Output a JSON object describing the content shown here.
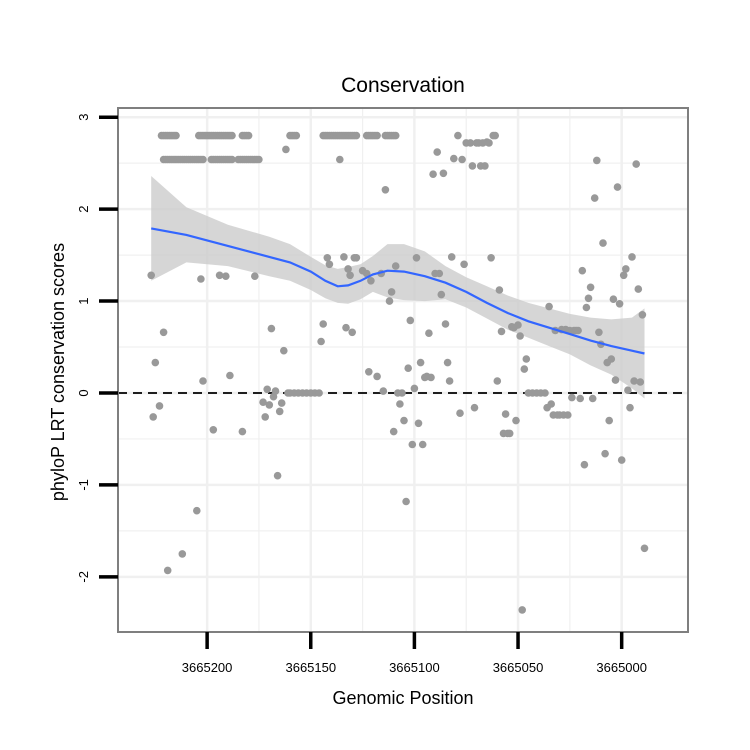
{
  "chart_data": {
    "type": "scatter",
    "title": "Conservation",
    "xlabel": "Genomic Position",
    "ylabel": "phyloP LRT conservation scores",
    "x_reversed": true,
    "xlim": [
      3664968,
      3665243
    ],
    "ylim": [
      -2.6,
      3.1
    ],
    "x_ticks": [
      3665200,
      3665150,
      3665100,
      3665050,
      3665000
    ],
    "x_tick_labels": [
      "3665200",
      "3665150",
      "3665100",
      "3665050",
      "3665000"
    ],
    "y_ticks": [
      -2,
      -1,
      0,
      1,
      2,
      3
    ],
    "y_tick_labels": [
      "-2",
      "-1",
      "0",
      "1",
      "2",
      "3"
    ],
    "reference_line": {
      "y": 0,
      "style": "dashed"
    },
    "grid": true,
    "colors": {
      "points": "#999999",
      "smooth_line": "#3366ff",
      "ribbon": "#cccccc",
      "grid": "#f0f0f0",
      "frame": "#7f7f7f"
    },
    "points": [
      {
        "x": 3665227,
        "y": 1.28
      },
      {
        "x": 3665226,
        "y": -0.26
      },
      {
        "x": 3665225,
        "y": 0.33
      },
      {
        "x": 3665223,
        "y": -0.14
      },
      {
        "x": 3665221,
        "y": 0.66
      },
      {
        "x": 3665219,
        "y": -1.93
      },
      {
        "x": 3665212,
        "y": -1.75
      },
      {
        "x": 3665205,
        "y": -1.28
      },
      {
        "x": 3665203,
        "y": 1.24
      },
      {
        "x": 3665202,
        "y": 0.13
      },
      {
        "x": 3665197,
        "y": -0.4
      },
      {
        "x": 3665194,
        "y": 1.28
      },
      {
        "x": 3665191,
        "y": 1.27
      },
      {
        "x": 3665189,
        "y": 0.19
      },
      {
        "x": 3665183,
        "y": -0.42
      },
      {
        "x": 3665177,
        "y": 1.27
      },
      {
        "x": 3665173,
        "y": -0.1
      },
      {
        "x": 3665172,
        "y": -0.26
      },
      {
        "x": 3665171,
        "y": 0.04
      },
      {
        "x": 3665170,
        "y": -0.13
      },
      {
        "x": 3665169,
        "y": 0.7
      },
      {
        "x": 3665168,
        "y": -0.04
      },
      {
        "x": 3665167,
        "y": 0.02
      },
      {
        "x": 3665166,
        "y": -0.9
      },
      {
        "x": 3665165,
        "y": -0.2
      },
      {
        "x": 3665164,
        "y": -0.11
      },
      {
        "x": 3665163,
        "y": 0.46
      },
      {
        "x": 3665162,
        "y": 2.65
      },
      {
        "x": 3665161,
        "y": 0.0
      },
      {
        "x": 3665160,
        "y": 0.0
      },
      {
        "x": 3665158,
        "y": 0.0
      },
      {
        "x": 3665156,
        "y": 0.0
      },
      {
        "x": 3665154,
        "y": 0.0
      },
      {
        "x": 3665152,
        "y": 0.0
      },
      {
        "x": 3665150,
        "y": 0.0
      },
      {
        "x": 3665148,
        "y": 0.0
      },
      {
        "x": 3665146,
        "y": 0.0
      },
      {
        "x": 3665145,
        "y": 0.56
      },
      {
        "x": 3665144,
        "y": 0.75
      },
      {
        "x": 3665142,
        "y": 1.47
      },
      {
        "x": 3665141,
        "y": 1.4
      },
      {
        "x": 3665136,
        "y": 2.54
      },
      {
        "x": 3665134,
        "y": 1.48
      },
      {
        "x": 3665133,
        "y": 0.71
      },
      {
        "x": 3665132,
        "y": 1.35
      },
      {
        "x": 3665131,
        "y": 1.28
      },
      {
        "x": 3665130,
        "y": 0.66
      },
      {
        "x": 3665129,
        "y": 1.47
      },
      {
        "x": 3665128,
        "y": 1.47
      },
      {
        "x": 3665125,
        "y": 1.33
      },
      {
        "x": 3665123,
        "y": 1.3
      },
      {
        "x": 3665122,
        "y": 0.23
      },
      {
        "x": 3665121,
        "y": 1.22
      },
      {
        "x": 3665118,
        "y": 0.18
      },
      {
        "x": 3665116,
        "y": 1.3
      },
      {
        "x": 3665115,
        "y": 0.02
      },
      {
        "x": 3665114,
        "y": 2.21
      },
      {
        "x": 3665112,
        "y": 1.0
      },
      {
        "x": 3665111,
        "y": 1.1
      },
      {
        "x": 3665110,
        "y": -0.42
      },
      {
        "x": 3665109,
        "y": 1.38
      },
      {
        "x": 3665108,
        "y": 0.0
      },
      {
        "x": 3665107,
        "y": -0.12
      },
      {
        "x": 3665106,
        "y": 0.0
      },
      {
        "x": 3665105,
        "y": -0.3
      },
      {
        "x": 3665104,
        "y": -1.18
      },
      {
        "x": 3665103,
        "y": 0.27
      },
      {
        "x": 3665102,
        "y": 0.79
      },
      {
        "x": 3665101,
        "y": -0.56
      },
      {
        "x": 3665100,
        "y": 0.05
      },
      {
        "x": 3665099,
        "y": 1.47
      },
      {
        "x": 3665098,
        "y": -0.33
      },
      {
        "x": 3665097,
        "y": 0.33
      },
      {
        "x": 3665096,
        "y": -0.56
      },
      {
        "x": 3665095,
        "y": 0.17
      },
      {
        "x": 3665094,
        "y": 0.18
      },
      {
        "x": 3665093,
        "y": 0.65
      },
      {
        "x": 3665092,
        "y": 0.17
      },
      {
        "x": 3665091,
        "y": 2.38
      },
      {
        "x": 3665090,
        "y": 1.3
      },
      {
        "x": 3665089,
        "y": 2.62
      },
      {
        "x": 3665088,
        "y": 1.3
      },
      {
        "x": 3665087,
        "y": 1.07
      },
      {
        "x": 3665086,
        "y": 2.39
      },
      {
        "x": 3665085,
        "y": 0.75
      },
      {
        "x": 3665084,
        "y": 0.33
      },
      {
        "x": 3665083,
        "y": 0.13
      },
      {
        "x": 3665082,
        "y": 1.48
      },
      {
        "x": 3665081,
        "y": 2.55
      },
      {
        "x": 3665079,
        "y": 2.8
      },
      {
        "x": 3665078,
        "y": -0.22
      },
      {
        "x": 3665077,
        "y": 2.54
      },
      {
        "x": 3665076,
        "y": 1.4
      },
      {
        "x": 3665075,
        "y": 2.72
      },
      {
        "x": 3665073,
        "y": 2.72
      },
      {
        "x": 3665072,
        "y": 2.47
      },
      {
        "x": 3665071,
        "y": -0.16
      },
      {
        "x": 3665070,
        "y": 2.72
      },
      {
        "x": 3665069,
        "y": 2.72
      },
      {
        "x": 3665068,
        "y": 2.47
      },
      {
        "x": 3665067,
        "y": 2.72
      },
      {
        "x": 3665066,
        "y": 2.47
      },
      {
        "x": 3665065,
        "y": 2.73
      },
      {
        "x": 3665064,
        "y": 2.72
      },
      {
        "x": 3665063,
        "y": 1.47
      },
      {
        "x": 3665062,
        "y": 2.8
      },
      {
        "x": 3665061,
        "y": 2.8
      },
      {
        "x": 3665060,
        "y": 0.13
      },
      {
        "x": 3665059,
        "y": 1.12
      },
      {
        "x": 3665058,
        "y": 0.67
      },
      {
        "x": 3665057,
        "y": -0.44
      },
      {
        "x": 3665056,
        "y": -0.23
      },
      {
        "x": 3665055,
        "y": -0.44
      },
      {
        "x": 3665054,
        "y": -0.44
      },
      {
        "x": 3665053,
        "y": 0.72
      },
      {
        "x": 3665052,
        "y": 0.71
      },
      {
        "x": 3665051,
        "y": -0.3
      },
      {
        "x": 3665050,
        "y": 0.74
      },
      {
        "x": 3665049,
        "y": 0.62
      },
      {
        "x": 3665048,
        "y": -2.36
      },
      {
        "x": 3665047,
        "y": 0.26
      },
      {
        "x": 3665046,
        "y": 0.37
      },
      {
        "x": 3665045,
        "y": 0.0
      },
      {
        "x": 3665043,
        "y": 0.0
      },
      {
        "x": 3665041,
        "y": 0.0
      },
      {
        "x": 3665039,
        "y": 0.0
      },
      {
        "x": 3665037,
        "y": 0.0
      },
      {
        "x": 3665036,
        "y": -0.16
      },
      {
        "x": 3665035,
        "y": 0.94
      },
      {
        "x": 3665034,
        "y": -0.12
      },
      {
        "x": 3665033,
        "y": -0.24
      },
      {
        "x": 3665032,
        "y": 0.68
      },
      {
        "x": 3665031,
        "y": -0.24
      },
      {
        "x": 3665030,
        "y": -0.24
      },
      {
        "x": 3665029,
        "y": 0.69
      },
      {
        "x": 3665028,
        "y": -0.24
      },
      {
        "x": 3665027,
        "y": 0.69
      },
      {
        "x": 3665026,
        "y": -0.24
      },
      {
        "x": 3665025,
        "y": 0.68
      },
      {
        "x": 3665024,
        "y": -0.05
      },
      {
        "x": 3665023,
        "y": 0.68
      },
      {
        "x": 3665022,
        "y": 0.68
      },
      {
        "x": 3665021,
        "y": 0.68
      },
      {
        "x": 3665020,
        "y": -0.06
      },
      {
        "x": 3665019,
        "y": 1.33
      },
      {
        "x": 3665018,
        "y": -0.78
      },
      {
        "x": 3665017,
        "y": 0.93
      },
      {
        "x": 3665016,
        "y": 1.03
      },
      {
        "x": 3665015,
        "y": 1.15
      },
      {
        "x": 3665014,
        "y": -0.06
      },
      {
        "x": 3665013,
        "y": 2.12
      },
      {
        "x": 3665012,
        "y": 2.53
      },
      {
        "x": 3665011,
        "y": 0.66
      },
      {
        "x": 3665010,
        "y": 0.53
      },
      {
        "x": 3665009,
        "y": 1.63
      },
      {
        "x": 3665008,
        "y": -0.66
      },
      {
        "x": 3665007,
        "y": 0.33
      },
      {
        "x": 3665006,
        "y": -0.3
      },
      {
        "x": 3665005,
        "y": 0.37
      },
      {
        "x": 3665004,
        "y": 1.02
      },
      {
        "x": 3665003,
        "y": 0.14
      },
      {
        "x": 3665002,
        "y": 2.24
      },
      {
        "x": 3665001,
        "y": 0.97
      },
      {
        "x": 3665000,
        "y": -0.73
      },
      {
        "x": 3664999,
        "y": 1.28
      },
      {
        "x": 3664998,
        "y": 1.35
      },
      {
        "x": 3664997,
        "y": 0.03
      },
      {
        "x": 3664996,
        "y": -0.16
      },
      {
        "x": 3664995,
        "y": 1.48
      },
      {
        "x": 3664994,
        "y": 0.13
      },
      {
        "x": 3664993,
        "y": 2.49
      },
      {
        "x": 3664992,
        "y": 1.13
      },
      {
        "x": 3664991,
        "y": 0.12
      },
      {
        "x": 3664990,
        "y": 0.85
      },
      {
        "x": 3664989,
        "y": -1.69
      }
    ],
    "point_runs": [
      {
        "x_start": 3665222,
        "x_end": 3665215,
        "y": 2.8
      },
      {
        "x_start": 3665204,
        "x_end": 3665188,
        "y": 2.8
      },
      {
        "x_start": 3665183,
        "x_end": 3665180,
        "y": 2.8
      },
      {
        "x_start": 3665160,
        "x_end": 3665157,
        "y": 2.8
      },
      {
        "x_start": 3665144,
        "x_end": 3665128,
        "y": 2.8
      },
      {
        "x_start": 3665123,
        "x_end": 3665118,
        "y": 2.8
      },
      {
        "x_start": 3665114,
        "x_end": 3665109,
        "y": 2.8
      },
      {
        "x_start": 3665221,
        "x_end": 3665202,
        "y": 2.54
      },
      {
        "x_start": 3665198,
        "x_end": 3665188,
        "y": 2.54
      },
      {
        "x_start": 3665185,
        "x_end": 3665175,
        "y": 2.54
      }
    ],
    "smooth_line": {
      "x": [
        3665227,
        3665210,
        3665190,
        3665170,
        3665160,
        3665150,
        3665143,
        3665137,
        3665132,
        3665126,
        3665120,
        3665113,
        3665105,
        3665095,
        3665085,
        3665075,
        3665065,
        3665055,
        3665045,
        3665035,
        3665025,
        3665015,
        3665005,
        3664995,
        3664989
      ],
      "y": [
        1.79,
        1.72,
        1.6,
        1.48,
        1.42,
        1.32,
        1.22,
        1.16,
        1.17,
        1.22,
        1.29,
        1.33,
        1.32,
        1.27,
        1.2,
        1.1,
        0.98,
        0.87,
        0.78,
        0.71,
        0.64,
        0.57,
        0.51,
        0.46,
        0.43
      ]
    },
    "ribbon": {
      "x": [
        3665227,
        3665210,
        3665190,
        3665170,
        3665160,
        3665150,
        3665143,
        3665137,
        3665132,
        3665126,
        3665120,
        3665113,
        3665105,
        3665095,
        3665085,
        3665075,
        3665065,
        3665055,
        3665045,
        3665035,
        3665025,
        3665015,
        3665005,
        3664995,
        3664989
      ],
      "upper": [
        2.36,
        2.02,
        1.83,
        1.7,
        1.62,
        1.48,
        1.39,
        1.35,
        1.37,
        1.4,
        1.49,
        1.62,
        1.62,
        1.54,
        1.38,
        1.26,
        1.16,
        1.06,
        0.98,
        0.92,
        0.86,
        0.82,
        0.8,
        0.82,
        0.92
      ],
      "lower": [
        1.22,
        1.42,
        1.38,
        1.27,
        1.22,
        1.12,
        1.03,
        0.98,
        0.97,
        1.02,
        1.1,
        1.04,
        1.01,
        1.0,
        1.02,
        0.93,
        0.81,
        0.69,
        0.6,
        0.51,
        0.42,
        0.3,
        0.2,
        0.05,
        -0.06
      ]
    }
  }
}
